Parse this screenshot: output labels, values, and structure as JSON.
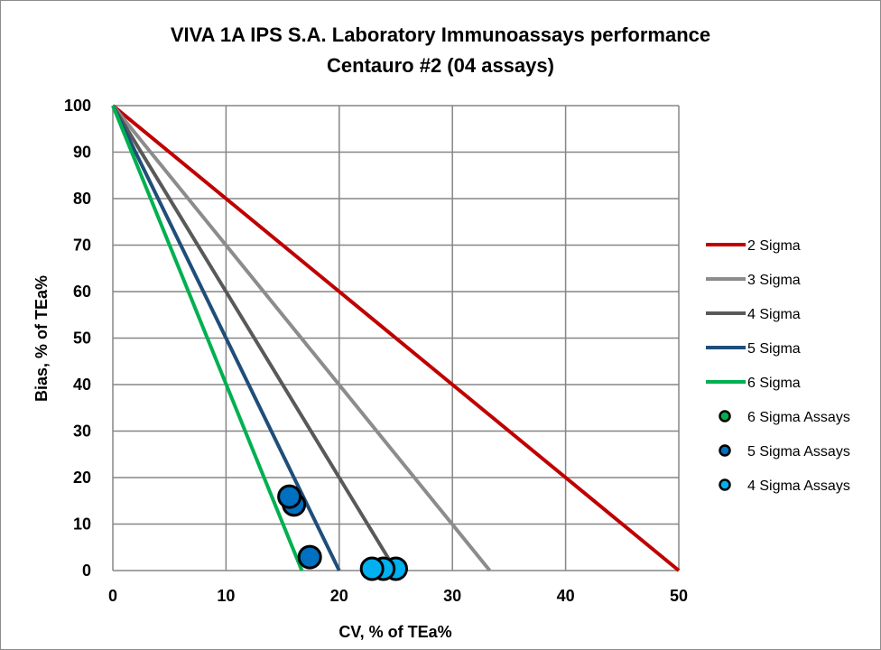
{
  "chart_data": {
    "type": "scatter",
    "title": [
      "VIVA 1A IPS S.A. Laboratory Immunoassays performance",
      "Centauro #2 (04 assays)"
    ],
    "xlabel": "CV, % of TEa%",
    "ylabel": "Bias, % of TEa%",
    "xlim": [
      0,
      50
    ],
    "ylim": [
      0,
      100
    ],
    "xticks": [
      0,
      10,
      20,
      30,
      40,
      50
    ],
    "yticks": [
      0,
      10,
      20,
      30,
      40,
      50,
      60,
      70,
      80,
      90,
      100
    ],
    "grid": true,
    "legend_position": "right",
    "lines": [
      {
        "name": "2 Sigma",
        "color": "#c00000",
        "points": [
          [
            0,
            100
          ],
          [
            50,
            0
          ]
        ]
      },
      {
        "name": "3 Sigma",
        "color": "#8c8c8c",
        "points": [
          [
            0,
            100
          ],
          [
            33.3,
            0
          ]
        ]
      },
      {
        "name": "4 Sigma",
        "color": "#595959",
        "points": [
          [
            0,
            100
          ],
          [
            25,
            0
          ]
        ]
      },
      {
        "name": "5 Sigma",
        "color": "#1f4e79",
        "points": [
          [
            0,
            100
          ],
          [
            20,
            0
          ]
        ]
      },
      {
        "name": "6 Sigma",
        "color": "#00b050",
        "points": [
          [
            0,
            100
          ],
          [
            16.7,
            0
          ]
        ]
      }
    ],
    "scatter": [
      {
        "name": "6 Sigma Assays",
        "color": "#00b050",
        "points": []
      },
      {
        "name": "5 Sigma Assays",
        "color": "#0070c0",
        "points": [
          [
            15.6,
            15.9
          ],
          [
            16.0,
            14.2
          ],
          [
            17.4,
            2.9
          ]
        ]
      },
      {
        "name": "4 Sigma Assays",
        "color": "#00b0f0",
        "points": [
          [
            22.9,
            0.4
          ],
          [
            23.9,
            0.4
          ],
          [
            25.0,
            0.4
          ]
        ]
      }
    ]
  }
}
